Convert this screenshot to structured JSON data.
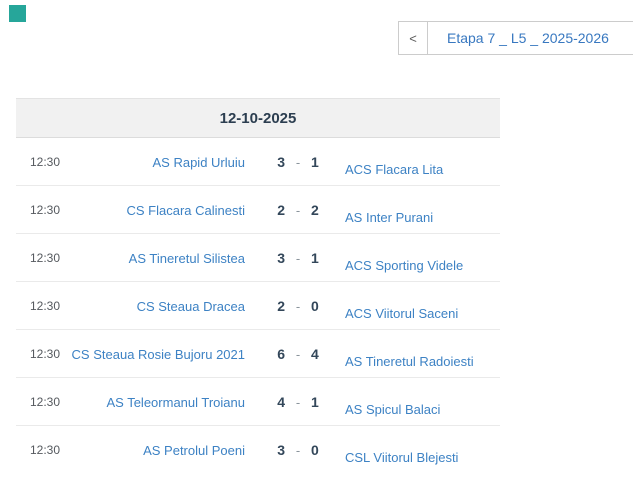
{
  "page": {
    "accent_square_color": "#26a69a"
  },
  "round_selector": {
    "prev_button_label": "<",
    "selected_round": "Etapa 7 _ L5 _ 2025-2026"
  },
  "fixtures": {
    "date": "12-10-2025",
    "score_separator": "-",
    "matches": [
      {
        "time": "12:30",
        "home": "AS Rapid Urluiu",
        "home_score": "3",
        "away_score": "1",
        "away": "ACS Flacara Lita"
      },
      {
        "time": "12:30",
        "home": "CS Flacara Calinesti",
        "home_score": "2",
        "away_score": "2",
        "away": "AS Inter Purani"
      },
      {
        "time": "12:30",
        "home": "AS Tineretul Silistea",
        "home_score": "3",
        "away_score": "1",
        "away": "ACS Sporting Videle"
      },
      {
        "time": "12:30",
        "home": "CS Steaua Dracea",
        "home_score": "2",
        "away_score": "0",
        "away": "ACS Viitorul Saceni"
      },
      {
        "time": "12:30",
        "home": "CS Steaua Rosie Bujoru 2021",
        "home_score": "6",
        "away_score": "4",
        "away": "AS Tineretul Radoiesti"
      },
      {
        "time": "12:30",
        "home": "AS Teleormanul Troianu",
        "home_score": "4",
        "away_score": "1",
        "away": "AS Spicul Balaci"
      },
      {
        "time": "12:30",
        "home": "AS Petrolul Poeni",
        "home_score": "3",
        "away_score": "0",
        "away": "CSL Viitorul Blejesti"
      }
    ]
  },
  "colors": {
    "team_link": "#3d82c4",
    "score_text": "#33475a",
    "date_text": "#2c3e50",
    "time_text": "#55595e",
    "header_background": "#f1f1f1",
    "border": "#cccccc"
  }
}
